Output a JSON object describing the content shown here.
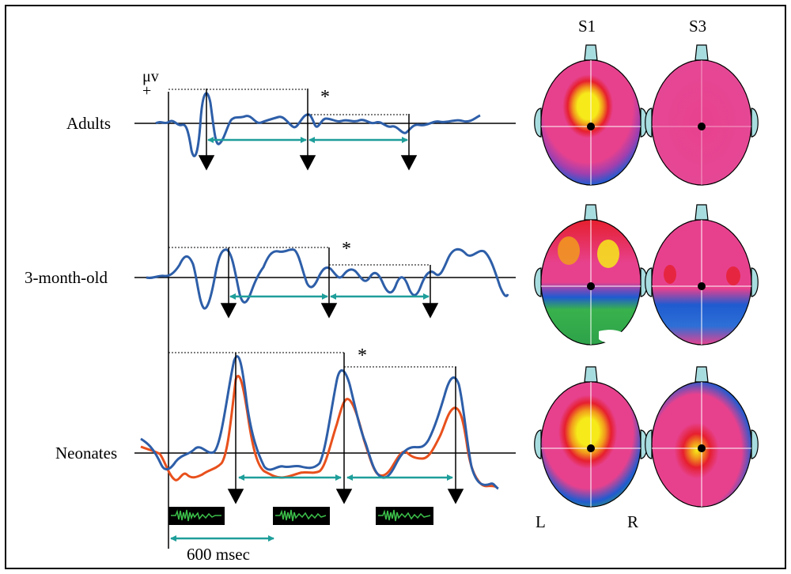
{
  "figure": {
    "rows": [
      {
        "label": "Adults",
        "id": "adults"
      },
      {
        "label": "3-month-old",
        "id": "infants"
      },
      {
        "label": "Neonates",
        "id": "neonates"
      }
    ],
    "y_unit": "μv",
    "polarity": "+",
    "significance_marker": "*",
    "time_scale_label": "600 msec",
    "map_columns": [
      "S1",
      "S3"
    ],
    "hemisphere_labels": {
      "left": "L",
      "right": "R"
    }
  },
  "colors": {
    "trace_blue": "#2d5ea8",
    "trace_orange": "#e8501c",
    "arrow_teal": "#1e9e9a",
    "sound_green": "#3cc04a",
    "map_magenta": "#e7418e",
    "map_red": "#e61f2e",
    "map_yellow": "#f6ea1a",
    "map_blue": "#1f5bd0",
    "map_green": "#38b24c",
    "map_purple": "#7b5aa6",
    "ear_fill": "#a8dde0"
  }
}
